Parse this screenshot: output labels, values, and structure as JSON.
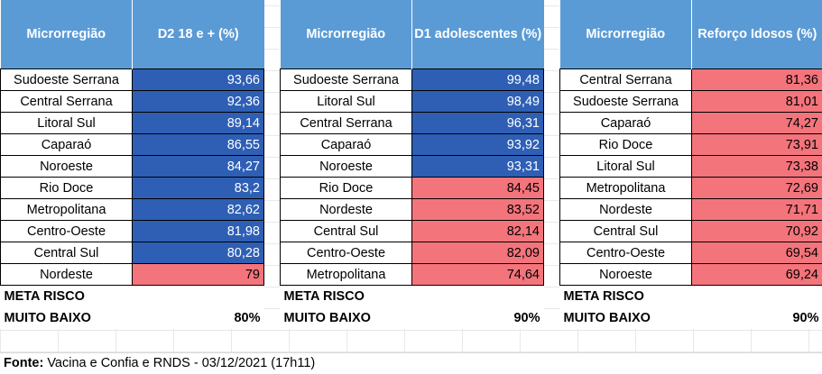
{
  "chart_data": [
    {
      "type": "table",
      "columns": [
        "Microrregião",
        "D2 18 e + (%)"
      ],
      "rows": [
        {
          "name": "Sudoeste Serrana",
          "value": "93,66",
          "color": "#2e5fb5"
        },
        {
          "name": "Central Serrana",
          "value": "92,36",
          "color": "#2e5fb5"
        },
        {
          "name": "Litoral Sul",
          "value": "89,14",
          "color": "#2e5fb5"
        },
        {
          "name": "Caparaó",
          "value": "86,55",
          "color": "#2e5fb5"
        },
        {
          "name": "Noroeste",
          "value": "84,27",
          "color": "#2e5fb5"
        },
        {
          "name": "Rio Doce",
          "value": "83,2",
          "color": "#2e5fb5"
        },
        {
          "name": "Metropolitana",
          "value": "82,62",
          "color": "#2e5fb5"
        },
        {
          "name": "Centro-Oeste",
          "value": "81,98",
          "color": "#2e5fb5"
        },
        {
          "name": "Central Sul",
          "value": "80,28",
          "color": "#2e5fb5"
        },
        {
          "name": "Nordeste",
          "value": "79",
          "color": "#f4747c"
        }
      ],
      "meta": {
        "label_line1": "META RISCO",
        "label_line2": "MUITO BAIXO",
        "value": "80%"
      }
    },
    {
      "type": "table",
      "columns": [
        "Microrregião",
        "D1 adolescentes (%)"
      ],
      "rows": [
        {
          "name": "Sudoeste Serrana",
          "value": "99,48",
          "color": "#2e5fb5"
        },
        {
          "name": "Litoral Sul",
          "value": "98,49",
          "color": "#2e5fb5"
        },
        {
          "name": "Central Serrana",
          "value": "96,31",
          "color": "#2e5fb5"
        },
        {
          "name": "Caparaó",
          "value": "93,92",
          "color": "#2e5fb5"
        },
        {
          "name": "Noroeste",
          "value": "93,31",
          "color": "#2e5fb5"
        },
        {
          "name": "Rio Doce",
          "value": "84,45",
          "color": "#f4747c"
        },
        {
          "name": "Nordeste",
          "value": "83,52",
          "color": "#f4747c"
        },
        {
          "name": "Central Sul",
          "value": "82,14",
          "color": "#f4747c"
        },
        {
          "name": "Centro-Oeste",
          "value": "82,09",
          "color": "#f4747c"
        },
        {
          "name": "Metropolitana",
          "value": "74,64",
          "color": "#f4747c"
        }
      ],
      "meta": {
        "label_line1": "META RISCO",
        "label_line2": "MUITO BAIXO",
        "value": "90%"
      }
    },
    {
      "type": "table",
      "columns": [
        "Microrregião",
        "Reforço Idosos (%)"
      ],
      "rows": [
        {
          "name": "Central Serrana",
          "value": "81,36",
          "color": "#f4747c"
        },
        {
          "name": "Sudoeste Serrana",
          "value": "81,01",
          "color": "#f4747c"
        },
        {
          "name": "Caparaó",
          "value": "74,27",
          "color": "#f4747c"
        },
        {
          "name": "Rio Doce",
          "value": "73,91",
          "color": "#f4747c"
        },
        {
          "name": "Litoral Sul",
          "value": "73,38",
          "color": "#f4747c"
        },
        {
          "name": "Metropolitana",
          "value": "72,69",
          "color": "#f4747c"
        },
        {
          "name": "Nordeste",
          "value": "71,71",
          "color": "#f4747c"
        },
        {
          "name": "Central Sul",
          "value": "70,92",
          "color": "#f4747c"
        },
        {
          "name": "Centro-Oeste",
          "value": "69,54",
          "color": "#f4747c"
        },
        {
          "name": "Noroeste",
          "value": "69,24",
          "color": "#f4747c"
        }
      ],
      "meta": {
        "label_line1": "META RISCO",
        "label_line2": "MUITO BAIXO",
        "value": "90%"
      }
    }
  ],
  "footer": {
    "label": "Fonte:",
    "text": " Vacina e Confia e RNDS - 03/12/2021 (17h11)"
  },
  "colors": {
    "header_bg": "#5b9bd5",
    "above_target": "#2e5fb5",
    "below_target": "#f4747c"
  }
}
